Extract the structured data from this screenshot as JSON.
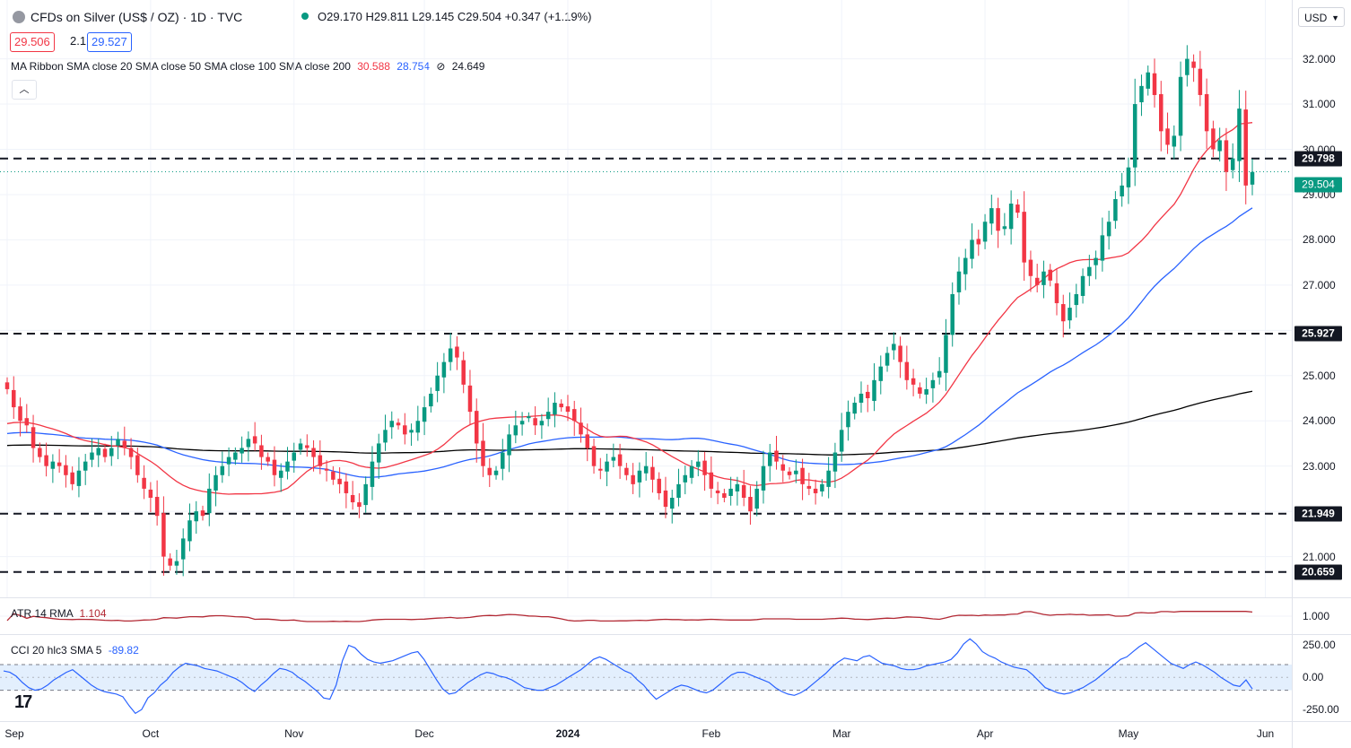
{
  "header": {
    "instrument": "CFDs on Silver (US$ / OZ) · 1D · TVC",
    "ohlc": "O29.170 H29.811 L29.145 C29.504 +0.347 (+1.19%)",
    "bid": "29.506",
    "spread": "2.1",
    "ask": "29.527",
    "ma_label": "MA Ribbon SMA close 20 SMA close 50 SMA close 100 SMA close 200",
    "ma20_value": "30.588",
    "ma50_value": "28.754",
    "ma100_marker": "⊘",
    "ma200_value": "24.649",
    "collapse_icon": "chevron-up-icon",
    "currency": "USD"
  },
  "colors": {
    "up": "#089981",
    "down": "#f23645",
    "ma20": "#f23645",
    "ma50": "#2962ff",
    "ma200": "#000000",
    "atr": "#b22833",
    "cci": "#2962ff",
    "cci_band": "#e3effd"
  },
  "chart_data": [
    {
      "type": "candlestick",
      "title": "CFDs on Silver (US$ / OZ)",
      "x_ticks": [
        "Sep",
        "Oct",
        "Nov",
        "Dec",
        "2024",
        "Feb",
        "Mar",
        "Apr",
        "May",
        "Jun"
      ],
      "y_ticks": [
        "32.000",
        "31.000",
        "30.000",
        "29.000",
        "28.000",
        "27.000",
        "26.000",
        "25.000",
        "24.000",
        "23.000",
        "22.000",
        "21.000"
      ],
      "ylim": [
        20.1,
        33.3
      ],
      "current_price": "29.504",
      "levels": [
        {
          "value": 29.798,
          "label": "29.798",
          "style": "dashed"
        },
        {
          "value": 25.927,
          "label": "25.927",
          "style": "dashed"
        },
        {
          "value": 21.949,
          "label": "21.949",
          "style": "dashed"
        },
        {
          "value": 20.659,
          "label": "20.659",
          "style": "dashed"
        }
      ],
      "closes": [
        24.7,
        24.3,
        24.0,
        23.9,
        23.4,
        23.2,
        23.0,
        23.1,
        23.0,
        22.8,
        22.6,
        22.9,
        23.1,
        23.3,
        23.4,
        23.2,
        23.4,
        23.6,
        23.4,
        23.2,
        22.8,
        22.5,
        22.3,
        21.9,
        21.0,
        20.8,
        20.9,
        21.4,
        21.8,
        22.0,
        21.9,
        22.5,
        22.8,
        23.0,
        23.2,
        23.3,
        23.4,
        23.6,
        23.5,
        23.2,
        23.1,
        22.8,
        22.9,
        23.1,
        23.3,
        23.5,
        23.4,
        23.2,
        23.0,
        22.9,
        22.7,
        22.6,
        22.4,
        22.2,
        22.1,
        22.6,
        23.1,
        23.5,
        23.8,
        24.0,
        23.9,
        23.7,
        23.8,
        24.0,
        24.3,
        24.6,
        25.0,
        25.3,
        25.6,
        25.4,
        24.8,
        24.2,
        23.5,
        23.0,
        22.8,
        22.9,
        23.3,
        23.7,
        23.9,
        24.0,
        24.1,
        23.9,
        24.0,
        24.2,
        24.4,
        24.3,
        24.2,
        24.0,
        23.7,
        23.4,
        23.0,
        22.9,
        23.1,
        23.2,
        23.0,
        22.8,
        22.6,
        22.9,
        23.0,
        22.7,
        22.4,
        22.1,
        22.3,
        22.6,
        22.8,
        23.0,
        23.1,
        22.8,
        22.5,
        22.4,
        22.3,
        22.5,
        22.6,
        22.3,
        22.0,
        22.5,
        23.0,
        23.3,
        23.1,
        22.9,
        22.8,
        22.9,
        22.6,
        22.5,
        22.4,
        22.6,
        22.9,
        23.3,
        23.8,
        24.2,
        24.4,
        24.6,
        24.5,
        24.9,
        25.2,
        25.5,
        25.7,
        25.3,
        24.9,
        24.8,
        24.6,
        24.7,
        24.9,
        25.1,
        25.9,
        26.8,
        27.3,
        27.6,
        28.0,
        27.9,
        28.4,
        28.7,
        28.2,
        28.3,
        28.8,
        28.6,
        27.5,
        27.2,
        27.0,
        27.3,
        27.1,
        26.6,
        26.2,
        26.5,
        26.8,
        27.2,
        27.4,
        27.6,
        28.1,
        28.4,
        28.9,
        29.2,
        29.6,
        31.0,
        31.4,
        31.7,
        31.2,
        30.4,
        30.1,
        30.3,
        31.6,
        32.0,
        31.8,
        31.2,
        30.4,
        30.0,
        30.2,
        29.5,
        29.8,
        30.9,
        29.2,
        29.5
      ],
      "series": [
        {
          "name": "SMA 20",
          "last_value": 30.588
        },
        {
          "name": "SMA 50",
          "last_value": 28.754
        },
        {
          "name": "SMA 200",
          "last_value": 24.649
        }
      ]
    },
    {
      "type": "line",
      "title": "ATR 14 RMA",
      "last_value": "1.104",
      "y_ticks": [
        "1.000"
      ],
      "ylim": [
        0.55,
        1.45
      ]
    },
    {
      "type": "line",
      "title": "CCI 20 hlc3 SMA 5",
      "last_value": "-89.82",
      "y_ticks": [
        "250.00",
        "0.00",
        "-250.00"
      ],
      "band": [
        -100,
        100
      ],
      "ylim": [
        -340,
        330
      ],
      "values": [
        50,
        40,
        10,
        -40,
        -80,
        -100,
        -90,
        -60,
        -20,
        10,
        40,
        60,
        20,
        -20,
        -60,
        -90,
        -110,
        -120,
        -130,
        -150,
        -220,
        -280,
        -250,
        -160,
        -120,
        -60,
        -20,
        40,
        80,
        110,
        100,
        90,
        70,
        60,
        50,
        30,
        10,
        -10,
        -40,
        -80,
        -110,
        -60,
        -20,
        30,
        70,
        60,
        40,
        0,
        -30,
        -70,
        -110,
        -160,
        -170,
        -60,
        130,
        250,
        230,
        180,
        140,
        120,
        110,
        120,
        130,
        150,
        170,
        190,
        200,
        140,
        60,
        -20,
        -90,
        -130,
        -120,
        -80,
        -40,
        -10,
        20,
        40,
        30,
        10,
        0,
        -20,
        -50,
        -80,
        -90,
        -100,
        -100,
        -80,
        -60,
        -30,
        0,
        30,
        60,
        100,
        140,
        160,
        140,
        110,
        80,
        50,
        30,
        -20,
        -60,
        -120,
        -170,
        -140,
        -110,
        -80,
        -60,
        -70,
        -90,
        -110,
        -120,
        -100,
        -60,
        -20,
        20,
        40,
        40,
        20,
        0,
        -20,
        -40,
        -80,
        -110,
        -130,
        -140,
        -120,
        -90,
        -50,
        -10,
        30,
        80,
        120,
        150,
        140,
        130,
        160,
        170,
        140,
        110,
        100,
        90,
        70,
        60,
        60,
        70,
        90,
        100,
        110,
        120,
        140,
        190,
        260,
        300,
        260,
        200,
        170,
        150,
        120,
        100,
        80,
        70,
        60,
        20,
        -30,
        -80,
        -100,
        -120,
        -130,
        -120,
        -100,
        -80,
        -50,
        -20,
        20,
        60,
        100,
        140,
        160,
        200,
        240,
        270,
        230,
        190,
        150,
        110,
        90,
        70,
        100,
        120,
        100,
        70,
        40,
        0,
        -30,
        -60,
        -70,
        -20,
        -90
      ]
    }
  ]
}
